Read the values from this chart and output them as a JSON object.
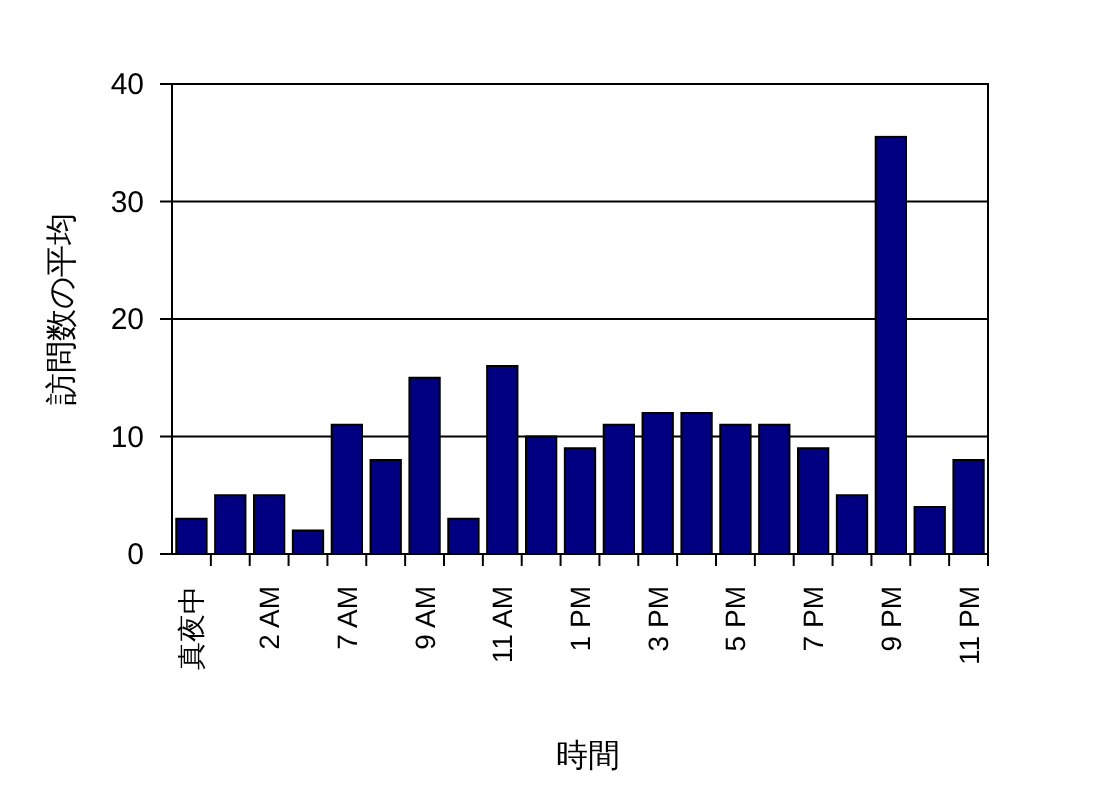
{
  "chart_data": {
    "type": "bar",
    "xlabel": "時間",
    "ylabel": "訪問数の平均",
    "categories": [
      "真夜中",
      null,
      "2 AM",
      null,
      "7 AM",
      null,
      "9 AM",
      null,
      "11 AM",
      null,
      "1 PM",
      null,
      "3 PM",
      null,
      "5 PM",
      null,
      "7 PM",
      null,
      "9 PM",
      null,
      "11 PM"
    ],
    "values": [
      3,
      5,
      5,
      2,
      11,
      8,
      15,
      3,
      16,
      10,
      9,
      11,
      12,
      12,
      11,
      11,
      9,
      5,
      35.5,
      4,
      8
    ],
    "color": "#000080",
    "ylim": [
      0,
      40
    ],
    "yticks": [
      0,
      10,
      20,
      30,
      40
    ],
    "grid": "y"
  }
}
